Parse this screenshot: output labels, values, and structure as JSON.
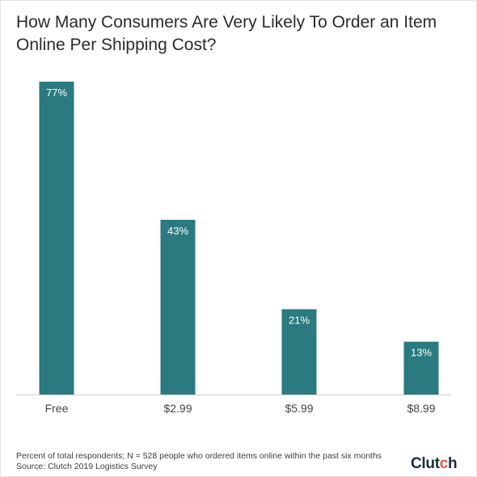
{
  "title": "How Many Consumers Are Very Likely To Order an Item Online Per Shipping Cost?",
  "colors": {
    "bar": "#2a7a80",
    "axis": "#cfcfcf",
    "label_inside": "#ffffff",
    "tick": "#444444"
  },
  "footnote_line1": "Percent of total respondents; N = 528 people who ordered items online within the past six months",
  "footnote_line2": "Source: Clutch 2019 Logistics Survey",
  "logo": {
    "text_main": "Clut",
    "text_accent": "c",
    "text_end": "h"
  },
  "chart_data": {
    "type": "bar",
    "title": "How Many Consumers Are Very Likely To Order an Item Online Per Shipping Cost?",
    "categories": [
      "Free",
      "$2.99",
      "$5.99",
      "$8.99"
    ],
    "values": [
      77,
      43,
      21,
      13
    ],
    "value_labels": [
      "77%",
      "43%",
      "21%",
      "13%"
    ],
    "unit": "%",
    "xlabel": "",
    "ylabel": "",
    "ylim": [
      0,
      77
    ],
    "grid": false,
    "legend": "none"
  }
}
